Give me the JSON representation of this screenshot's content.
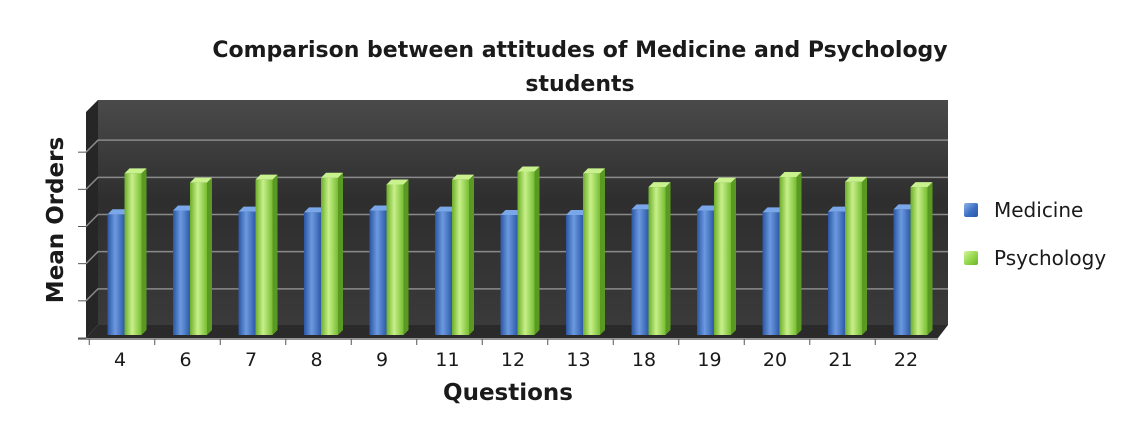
{
  "chart_data": {
    "type": "bar",
    "title_lines": [
      "Comparison between attitudes of Medicine and Psychology",
      "students"
    ],
    "xlabel": "Questions",
    "ylabel": "Mean Orders",
    "categories": [
      "4",
      "6",
      "7",
      "8",
      "9",
      "11",
      "12",
      "13",
      "18",
      "19",
      "20",
      "21",
      "22"
    ],
    "series": [
      {
        "name": "Medicine",
        "color": "#3f73c8",
        "values": [
          3.25,
          3.35,
          3.32,
          3.3,
          3.35,
          3.32,
          3.23,
          3.23,
          3.38,
          3.35,
          3.3,
          3.32,
          3.38
        ]
      },
      {
        "name": "Psychology",
        "color": "#8fd14b",
        "values": [
          4.35,
          4.1,
          4.18,
          4.23,
          4.05,
          4.18,
          4.4,
          4.35,
          3.98,
          4.1,
          4.25,
          4.12,
          3.98
        ]
      }
    ],
    "ylim": [
      0,
      6
    ],
    "legend_position": "right",
    "grid": true,
    "style": "3d-column",
    "wall_color": "#3d3d3d"
  }
}
